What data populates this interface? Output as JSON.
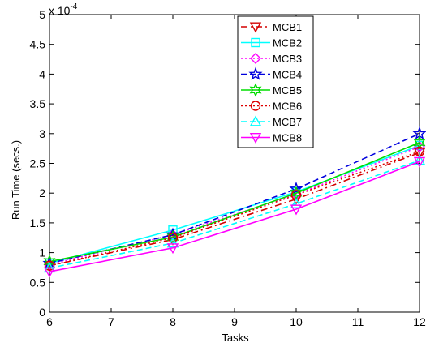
{
  "chart_data": {
    "type": "line",
    "xlabel": "Tasks",
    "ylabel": "Run Time (secs.)",
    "y_exponent_label": "x 10",
    "y_exponent_power": "-4",
    "xlim": [
      6,
      12
    ],
    "ylim": [
      0,
      5
    ],
    "x_ticks": [
      6,
      7,
      8,
      9,
      10,
      11,
      12
    ],
    "x_tick_labels": [
      "6",
      "7",
      "8",
      "9",
      "10",
      "11",
      "12"
    ],
    "y_ticks": [
      0,
      0.5,
      1,
      1.5,
      2,
      2.5,
      3,
      3.5,
      4,
      4.5,
      5
    ],
    "y_tick_labels": [
      "0",
      "0.5",
      "1",
      "1.5",
      "2",
      "2.5",
      "3",
      "3.5",
      "4",
      "4.5",
      "5"
    ],
    "y_multiplier": "1e-4",
    "grid": false,
    "legend_position": "top-right",
    "x": [
      6,
      8,
      10,
      12
    ],
    "series": [
      {
        "name": "MCB1",
        "values": [
          0.78,
          1.22,
          1.9,
          2.68
        ],
        "color": "#d40000",
        "dash": "8,4,2,4",
        "marker": "triangle-down"
      },
      {
        "name": "MCB2",
        "values": [
          0.82,
          1.38,
          2.02,
          2.8
        ],
        "color": "#00ffff",
        "dash": "",
        "marker": "square"
      },
      {
        "name": "MCB3",
        "values": [
          0.8,
          1.3,
          1.98,
          2.78
        ],
        "color": "#ff00ff",
        "dash": "2,3",
        "marker": "diamond"
      },
      {
        "name": "MCB4",
        "values": [
          0.82,
          1.3,
          2.07,
          3.0
        ],
        "color": "#0000dd",
        "dash": "7,4",
        "marker": "star"
      },
      {
        "name": "MCB5",
        "values": [
          0.85,
          1.26,
          2.0,
          2.85
        ],
        "color": "#00dd00",
        "dash": "",
        "marker": "hexagram"
      },
      {
        "name": "MCB6",
        "values": [
          0.78,
          1.25,
          1.97,
          2.7
        ],
        "color": "#dd0000",
        "dash": "2,3",
        "marker": "circle"
      },
      {
        "name": "MCB7",
        "values": [
          0.74,
          1.16,
          1.82,
          2.55
        ],
        "color": "#00ffff",
        "dash": "7,4",
        "marker": "triangle-up"
      },
      {
        "name": "MCB8",
        "values": [
          0.68,
          1.08,
          1.73,
          2.53
        ],
        "color": "#ff00ff",
        "dash": "",
        "marker": "triangle-down"
      }
    ]
  }
}
